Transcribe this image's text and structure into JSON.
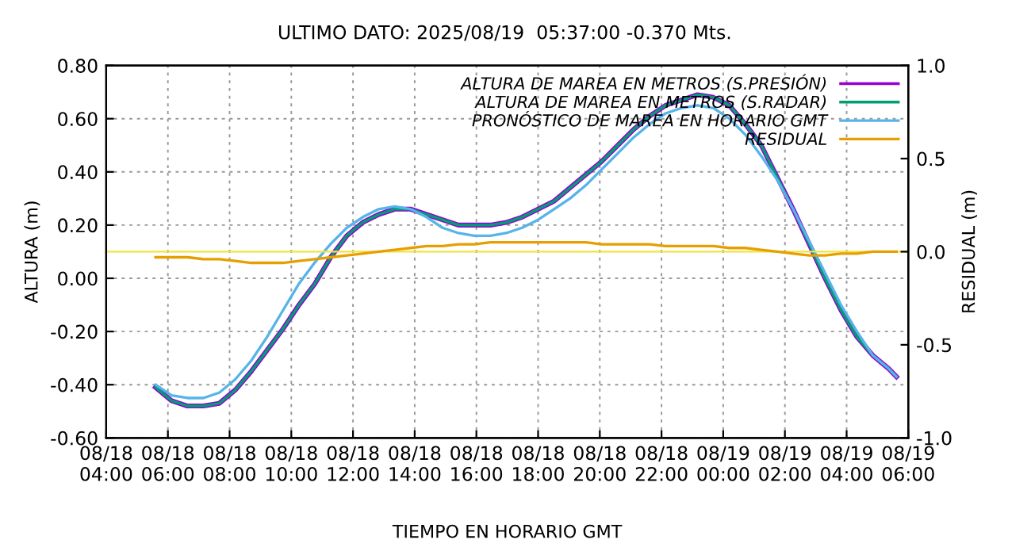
{
  "chart_data": {
    "type": "line",
    "title": "ULTIMO DATO: 2025/08/19  05:37:00 -0.370 Mts.",
    "xlabel": "TIEMPO EN HORARIO GMT",
    "ylabel": "ALTURA (m)",
    "y2label": "RESIDUAL (m)",
    "x": [
      "2025-08-18T05:36",
      "2025-08-18T06:07",
      "2025-08-18T06:38",
      "2025-08-18T07:09",
      "2025-08-18T07:40",
      "2025-08-18T08:11",
      "2025-08-18T08:42",
      "2025-08-18T09:13",
      "2025-08-18T09:44",
      "2025-08-18T10:15",
      "2025-08-18T10:46",
      "2025-08-18T11:17",
      "2025-08-18T11:48",
      "2025-08-18T12:19",
      "2025-08-18T12:50",
      "2025-08-18T13:21",
      "2025-08-18T13:52",
      "2025-08-18T14:23",
      "2025-08-18T14:54",
      "2025-08-18T15:25",
      "2025-08-18T15:56",
      "2025-08-18T16:27",
      "2025-08-18T16:58",
      "2025-08-18T17:29",
      "2025-08-18T18:00",
      "2025-08-18T18:31",
      "2025-08-18T19:02",
      "2025-08-18T19:33",
      "2025-08-18T20:04",
      "2025-08-18T20:35",
      "2025-08-18T21:06",
      "2025-08-18T21:37",
      "2025-08-18T22:08",
      "2025-08-18T22:39",
      "2025-08-18T23:10",
      "2025-08-18T23:41",
      "2025-08-19T00:12",
      "2025-08-19T00:43",
      "2025-08-19T01:14",
      "2025-08-19T01:45",
      "2025-08-19T02:16",
      "2025-08-19T02:47",
      "2025-08-19T03:18",
      "2025-08-19T03:49",
      "2025-08-19T04:20",
      "2025-08-19T04:51",
      "2025-08-19T05:22",
      "2025-08-19T05:37"
    ],
    "series": [
      {
        "name": "ALTURA DE MAREA EN METROS (S.PRESIÓN)",
        "color": "#9400d3",
        "values": [
          -0.41,
          -0.46,
          -0.48,
          -0.48,
          -0.47,
          -0.42,
          -0.35,
          -0.27,
          -0.19,
          -0.1,
          -0.02,
          0.08,
          0.16,
          0.21,
          0.24,
          0.26,
          0.26,
          0.24,
          0.22,
          0.2,
          0.2,
          0.2,
          0.21,
          0.23,
          0.26,
          0.29,
          0.34,
          0.39,
          0.44,
          0.5,
          0.56,
          0.61,
          0.65,
          0.67,
          0.69,
          0.68,
          0.65,
          0.58,
          0.5,
          0.38,
          0.26,
          0.13,
          0.0,
          -0.12,
          -0.22,
          -0.29,
          -0.34,
          -0.37
        ]
      },
      {
        "name": "ALTURA DE MAREA EN METROS (S.RADAR)",
        "color": "#009e73",
        "values": [
          -0.41,
          -0.46,
          -0.48,
          -0.48,
          -0.47,
          -0.42,
          -0.35,
          -0.27,
          -0.19,
          -0.1,
          -0.02,
          0.08,
          0.16,
          0.21,
          0.24,
          0.26,
          0.26,
          0.24,
          0.22,
          0.2,
          0.2,
          0.2,
          0.21,
          0.23,
          0.26,
          0.29,
          0.34,
          0.39,
          0.44,
          0.5,
          0.56,
          0.61,
          0.65,
          0.67,
          0.69,
          0.68,
          0.65,
          0.58,
          0.5,
          0.38,
          0.26,
          0.13,
          0.0,
          -0.12,
          -0.22,
          -0.29,
          -0.34,
          -0.37
        ]
      },
      {
        "name": "PRONÓSTICO DE MAREA EN HORARIO GMT",
        "color": "#56b4e9",
        "values": [
          -0.4,
          -0.44,
          -0.45,
          -0.45,
          -0.43,
          -0.38,
          -0.31,
          -0.22,
          -0.12,
          -0.02,
          0.06,
          0.13,
          0.19,
          0.23,
          0.26,
          0.27,
          0.26,
          0.23,
          0.19,
          0.17,
          0.16,
          0.16,
          0.17,
          0.19,
          0.22,
          0.26,
          0.3,
          0.35,
          0.41,
          0.47,
          0.53,
          0.58,
          0.62,
          0.64,
          0.65,
          0.64,
          0.6,
          0.54,
          0.46,
          0.37,
          0.26,
          0.14,
          0.02,
          -0.1,
          -0.2,
          -0.29,
          -0.34,
          -0.37
        ]
      },
      {
        "name": "RESIDUAL",
        "color": "#e69f00",
        "axis": "y2",
        "values": [
          -0.03,
          -0.03,
          -0.03,
          -0.04,
          -0.04,
          -0.05,
          -0.06,
          -0.06,
          -0.06,
          -0.05,
          -0.04,
          -0.03,
          -0.02,
          -0.01,
          0.0,
          0.01,
          0.02,
          0.03,
          0.03,
          0.04,
          0.04,
          0.05,
          0.05,
          0.05,
          0.05,
          0.05,
          0.05,
          0.05,
          0.04,
          0.04,
          0.04,
          0.04,
          0.03,
          0.03,
          0.03,
          0.03,
          0.02,
          0.02,
          0.01,
          0.0,
          -0.01,
          -0.02,
          -0.02,
          -0.01,
          -0.01,
          0.0,
          0.0,
          0.0
        ]
      }
    ],
    "xlim": [
      "2025-08-18T04:00",
      "2025-08-19T06:00"
    ],
    "xticks": [
      {
        "value": "2025-08-18T04:00",
        "label": "08/18\n04:00"
      },
      {
        "value": "2025-08-18T06:00",
        "label": "08/18\n06:00"
      },
      {
        "value": "2025-08-18T08:00",
        "label": "08/18\n08:00"
      },
      {
        "value": "2025-08-18T10:00",
        "label": "08/18\n10:00"
      },
      {
        "value": "2025-08-18T12:00",
        "label": "08/18\n12:00"
      },
      {
        "value": "2025-08-18T14:00",
        "label": "08/18\n14:00"
      },
      {
        "value": "2025-08-18T16:00",
        "label": "08/18\n16:00"
      },
      {
        "value": "2025-08-18T18:00",
        "label": "08/18\n18:00"
      },
      {
        "value": "2025-08-18T20:00",
        "label": "08/18\n20:00"
      },
      {
        "value": "2025-08-18T22:00",
        "label": "08/18\n22:00"
      },
      {
        "value": "2025-08-19T00:00",
        "label": "08/19\n00:00"
      },
      {
        "value": "2025-08-19T02:00",
        "label": "08/19\n02:00"
      },
      {
        "value": "2025-08-19T04:00",
        "label": "08/19\n04:00"
      },
      {
        "value": "2025-08-19T06:00",
        "label": "08/19\n06:00"
      }
    ],
    "ylim": [
      -0.6,
      0.8
    ],
    "yticks": [
      {
        "value": -0.6,
        "label": "-0.60"
      },
      {
        "value": -0.4,
        "label": "-0.40"
      },
      {
        "value": -0.2,
        "label": "-0.20"
      },
      {
        "value": 0,
        "label": "0.00"
      },
      {
        "value": 0.2,
        "label": "0.20"
      },
      {
        "value": 0.4,
        "label": "0.40"
      },
      {
        "value": 0.6,
        "label": "0.60"
      },
      {
        "value": 0.8,
        "label": "0.80"
      }
    ],
    "y2lim": [
      -1.0,
      1.0
    ],
    "y2ticks": [
      {
        "value": -1.0,
        "label": "-1.0"
      },
      {
        "value": -0.5,
        "label": "-0.5"
      },
      {
        "value": 0,
        "label": "0.0"
      },
      {
        "value": 0.5,
        "label": "0.5"
      },
      {
        "value": 1.0,
        "label": "1.0"
      }
    ],
    "ref_lines": [
      {
        "axis": "y2",
        "value": 0,
        "color": "#f0e442"
      }
    ],
    "grid": true,
    "legend": "top right",
    "line_style": "solid"
  }
}
